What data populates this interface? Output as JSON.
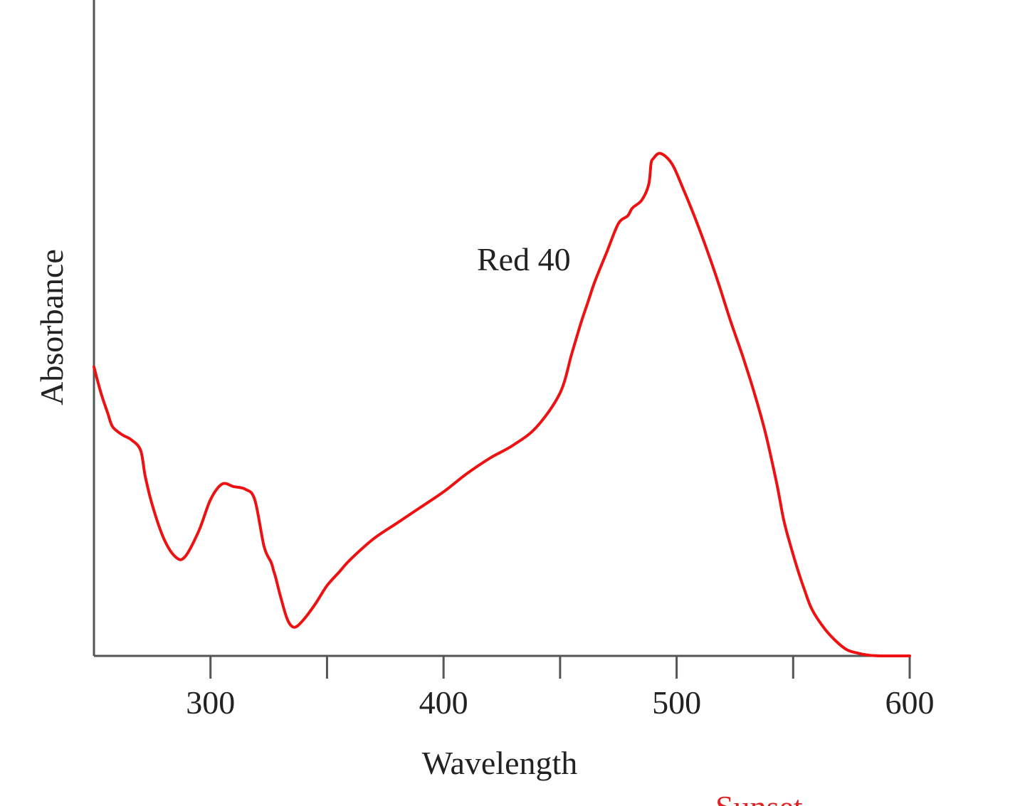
{
  "chart_data": {
    "type": "line",
    "title": "",
    "xlabel": "Wavelength",
    "ylabel": "Absorbance",
    "xlim": [
      250,
      600
    ],
    "ylim": [
      0,
      1
    ],
    "x_ticks": [
      300,
      350,
      400,
      450,
      500,
      550,
      600
    ],
    "x_tick_labels": [
      "300",
      "",
      "400",
      "",
      "500",
      "",
      "600"
    ],
    "y_ticks": [],
    "grid": false,
    "legend": "none",
    "annotation": "Red 40",
    "line_color": "#ee1111",
    "series": [
      {
        "name": "Red 40",
        "x": [
          250,
          253,
          256,
          258,
          262,
          266,
          270,
          272,
          275,
          280,
          285,
          289,
          295,
          300,
          305,
          310,
          315,
          319,
          323,
          326,
          327,
          328,
          330,
          333,
          336,
          340,
          345,
          350,
          355,
          360,
          370,
          380,
          390,
          400,
          410,
          420,
          430,
          440,
          450,
          455,
          459,
          462,
          465,
          470,
          475,
          479,
          481,
          485,
          488,
          489,
          490,
          493,
          498,
          503,
          508,
          513,
          518,
          523,
          528,
          533,
          538,
          543,
          546,
          549,
          552,
          555,
          558,
          563,
          568,
          573,
          578,
          583,
          588,
          593,
          597,
          600
        ],
        "y": [
          0.555,
          0.505,
          0.465,
          0.44,
          0.425,
          0.415,
          0.395,
          0.345,
          0.29,
          0.225,
          0.19,
          0.19,
          0.24,
          0.3,
          0.33,
          0.325,
          0.32,
          0.3,
          0.21,
          0.18,
          0.165,
          0.15,
          0.115,
          0.07,
          0.055,
          0.07,
          0.1,
          0.135,
          0.16,
          0.185,
          0.225,
          0.255,
          0.285,
          0.315,
          0.35,
          0.38,
          0.405,
          0.44,
          0.505,
          0.58,
          0.64,
          0.68,
          0.72,
          0.775,
          0.83,
          0.845,
          0.86,
          0.875,
          0.905,
          0.945,
          0.955,
          0.965,
          0.945,
          0.895,
          0.84,
          0.78,
          0.715,
          0.645,
          0.58,
          0.51,
          0.43,
          0.33,
          0.26,
          0.21,
          0.165,
          0.125,
          0.09,
          0.055,
          0.03,
          0.012,
          0.005,
          0.001,
          0.0,
          0.0,
          0.0,
          0.0
        ]
      }
    ]
  },
  "footer": {
    "caption_fragment": "Sunset"
  }
}
